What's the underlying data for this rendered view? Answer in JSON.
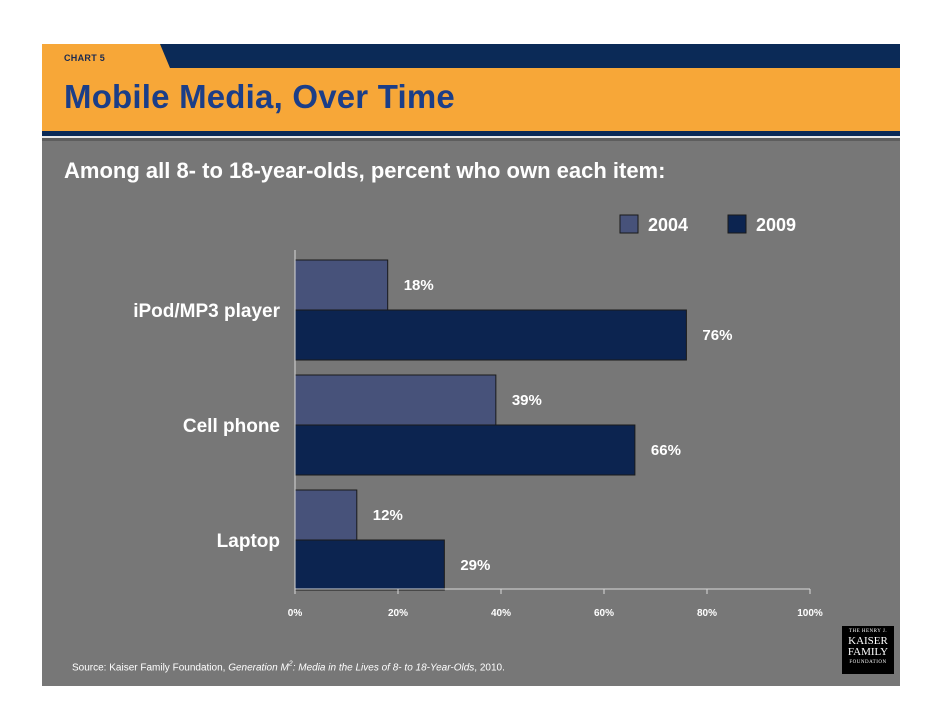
{
  "slide": {
    "tab_label": "CHART 5",
    "title": "Mobile Media, Over Time",
    "subtitle": "Among all 8- to 18-year-olds, percent who own each item:",
    "source_prefix": "Source: Kaiser Family Foundation, ",
    "source_title_a": "Generation M",
    "source_superscript": "2",
    "source_title_b": ": Media in the Lives of 8- to 18-Year-Olds",
    "source_suffix": ", 2010.",
    "logo": {
      "line1": "THE HENRY J.",
      "line2": "KAISER",
      "line3": "FAMILY",
      "line4": "FOUNDATION"
    }
  },
  "chart_data": {
    "type": "bar",
    "orientation": "horizontal",
    "title": "Mobile Media, Over Time",
    "categories": [
      "iPod/MP3 player",
      "Cell phone",
      "Laptop"
    ],
    "series": [
      {
        "name": "2004",
        "values": [
          18,
          39,
          12
        ],
        "labels": [
          "18%",
          "39%",
          "12%"
        ],
        "color": "#47527a"
      },
      {
        "name": "2009",
        "values": [
          76,
          66,
          29
        ],
        "labels": [
          "76%",
          "66%",
          "29%"
        ],
        "color": "#0c2450"
      }
    ],
    "xlim": [
      0,
      100
    ],
    "xticks": [
      0,
      20,
      40,
      60,
      80,
      100
    ],
    "xtick_labels": [
      "0%",
      "20%",
      "40%",
      "60%",
      "80%",
      "100%"
    ],
    "xlabel": "",
    "ylabel": "",
    "legend": "top-right",
    "grid": false
  },
  "colors": {
    "background": "#777777",
    "accent_orange": "#f7a738",
    "navy": "#0b2a57",
    "title_blue": "#1b3e88"
  }
}
